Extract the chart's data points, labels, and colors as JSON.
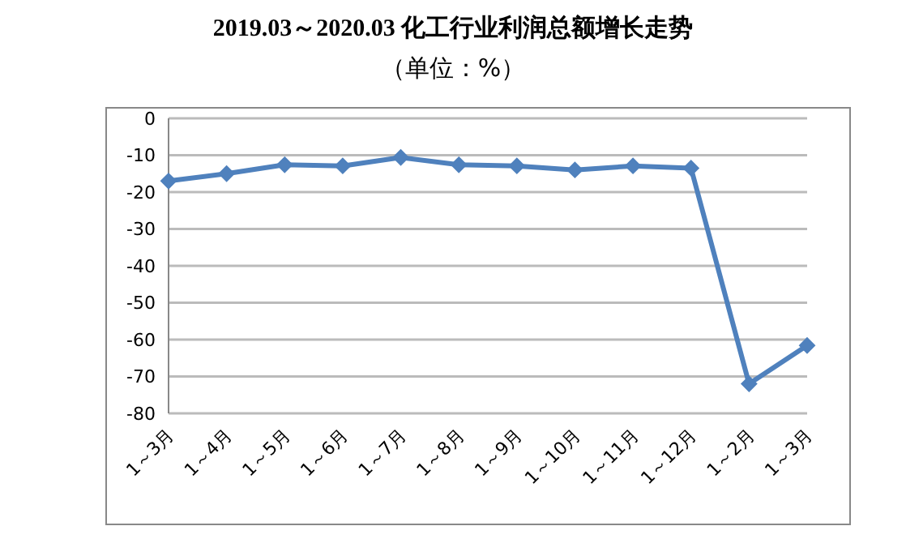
{
  "chart_data": {
    "type": "line",
    "title": "2019.03～2020.03 化工行业利润总额增长走势",
    "subtitle": "（单位：%）",
    "categories": [
      "1～3月",
      "1～4月",
      "1～5月",
      "1～6月",
      "1～7月",
      "1～8月",
      "1～9月",
      "1～10月",
      "1～11月",
      "1～12月",
      "1～2月",
      "1～3月"
    ],
    "series": [
      {
        "color": "#4f81bd",
        "values": [
          -17,
          -15,
          -12.6,
          -12.9,
          -10.6,
          -12.6,
          -12.9,
          -14,
          -12.9,
          -13.5,
          -72,
          -61.6
        ]
      }
    ],
    "ylim": [
      -80,
      0
    ],
    "yticks": [
      -80,
      -70,
      -60,
      -50,
      -40,
      -30,
      -20,
      -10,
      0
    ],
    "grid": "y",
    "marker": "diamond",
    "legend": false
  }
}
